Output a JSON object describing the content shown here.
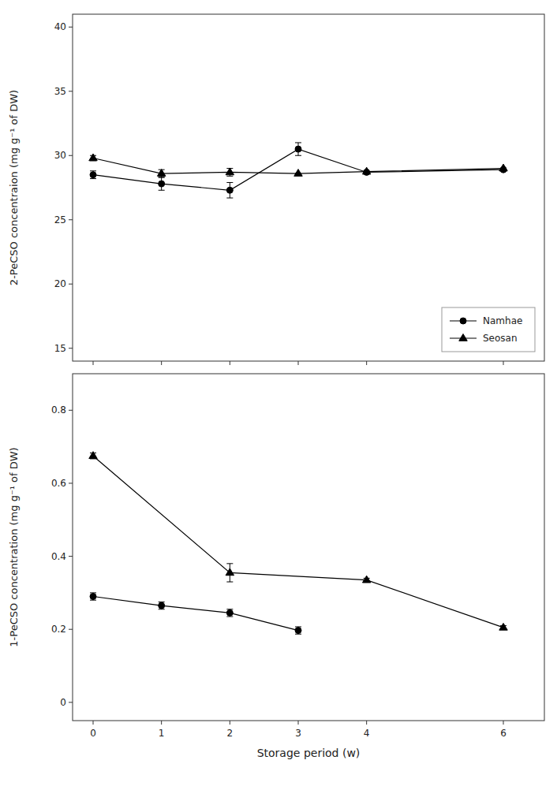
{
  "chart_data": [
    {
      "type": "line",
      "ylabel": "2-PeCSO concentraion (mg g⁻¹ of DW)",
      "x": [
        0,
        1,
        2,
        3,
        4,
        6
      ],
      "xlim": [
        -0.3,
        6.6
      ],
      "xticks": [
        0,
        1,
        2,
        3,
        4,
        6
      ],
      "ylim": [
        14,
        41
      ],
      "yticks": [
        15,
        20,
        25,
        30,
        35,
        40
      ],
      "tick_labels": "y",
      "grid": false,
      "legend": "lower right",
      "series": [
        {
          "name": "Namhae",
          "color": "#000000",
          "marker": "circle",
          "line_style": "solid",
          "values": [
            28.5,
            27.8,
            27.3,
            30.5,
            28.7,
            28.9
          ],
          "error": [
            0.3,
            0.5,
            0.6,
            0.5,
            0.0,
            0.0
          ]
        },
        {
          "name": "Seosan",
          "color": "#000000",
          "marker": "triangle",
          "line_style": "solid",
          "values": [
            29.8,
            28.6,
            28.7,
            28.6,
            28.75,
            29.0
          ],
          "error": [
            0.2,
            0.3,
            0.3,
            0.0,
            0.0,
            0.0
          ]
        }
      ]
    },
    {
      "type": "line",
      "xlabel": "Storage period (w)",
      "ylabel": "1-PeCSO concentration (mg g⁻¹ of DW)",
      "xlim": [
        -0.3,
        6.6
      ],
      "xticks": [
        0,
        1,
        2,
        3,
        4,
        6
      ],
      "ylim": [
        -0.05,
        0.9
      ],
      "yticks": [
        0.0,
        0.2,
        0.4,
        0.6,
        0.8
      ],
      "grid": false,
      "series": [
        {
          "color": "#000000",
          "marker": "circle",
          "line_style": "solid",
          "x": [
            0,
            1,
            2,
            3
          ],
          "values": [
            0.29,
            0.265,
            0.245,
            0.197
          ],
          "error": [
            0.01,
            0.01,
            0.01,
            0.01
          ]
        },
        {
          "color": "#000000",
          "marker": "triangle",
          "line_style": "solid",
          "x": [
            0,
            2,
            4,
            6
          ],
          "values": [
            0.675,
            0.355,
            0.335,
            0.205
          ],
          "error": [
            0.008,
            0.025,
            0.005,
            0.005
          ]
        }
      ]
    }
  ]
}
